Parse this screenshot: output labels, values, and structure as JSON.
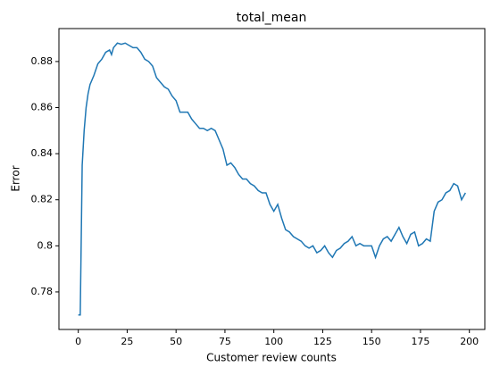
{
  "chart_data": {
    "type": "line",
    "title": "total_mean",
    "xlabel": "Customer review counts",
    "ylabel": "Error",
    "series": [
      {
        "color": "#1f77b4",
        "x": [
          0,
          1,
          2,
          3,
          4,
          5,
          6,
          8,
          10,
          12,
          14,
          16,
          17,
          18,
          20,
          22,
          24,
          26,
          28,
          30,
          32,
          34,
          36,
          38,
          40,
          42,
          44,
          46,
          48,
          50,
          52,
          54,
          56,
          58,
          60,
          62,
          64,
          66,
          68,
          70,
          72,
          74,
          76,
          78,
          80,
          82,
          84,
          86,
          88,
          90,
          92,
          94,
          96,
          98,
          100,
          102,
          104,
          106,
          108,
          110,
          112,
          114,
          116,
          118,
          120,
          122,
          124,
          126,
          128,
          130,
          132,
          134,
          136,
          138,
          140,
          142,
          144,
          146,
          148,
          150,
          152,
          154,
          156,
          158,
          160,
          162,
          164,
          166,
          168,
          170,
          172,
          174,
          176,
          178,
          180,
          182,
          184,
          186,
          188,
          190,
          192,
          194,
          196,
          198
        ],
        "values": [
          0.77,
          0.77,
          0.835,
          0.85,
          0.86,
          0.866,
          0.87,
          0.874,
          0.879,
          0.881,
          0.884,
          0.885,
          0.883,
          0.886,
          0.888,
          0.8875,
          0.888,
          0.887,
          0.886,
          0.886,
          0.884,
          0.881,
          0.88,
          0.878,
          0.873,
          0.871,
          0.869,
          0.868,
          0.865,
          0.863,
          0.858,
          0.858,
          0.858,
          0.855,
          0.853,
          0.851,
          0.851,
          0.85,
          0.851,
          0.85,
          0.846,
          0.842,
          0.835,
          0.836,
          0.834,
          0.831,
          0.829,
          0.829,
          0.827,
          0.826,
          0.824,
          0.823,
          0.823,
          0.818,
          0.815,
          0.818,
          0.812,
          0.807,
          0.806,
          0.804,
          0.803,
          0.802,
          0.8,
          0.799,
          0.8,
          0.797,
          0.798,
          0.8,
          0.797,
          0.795,
          0.798,
          0.799,
          0.801,
          0.802,
          0.804,
          0.8,
          0.801,
          0.8,
          0.8,
          0.8,
          0.795,
          0.8,
          0.803,
          0.804,
          0.802,
          0.805,
          0.808,
          0.804,
          0.801,
          0.805,
          0.806,
          0.8,
          0.801,
          0.803,
          0.802,
          0.815,
          0.819,
          0.82,
          0.823,
          0.824,
          0.827,
          0.826,
          0.82,
          0.823
        ]
      }
    ],
    "xlim": [
      -9.9,
      207.9
    ],
    "xticks": [
      0,
      25,
      50,
      75,
      100,
      125,
      150,
      175,
      200
    ],
    "ylim": [
      0.7637,
      0.8943
    ],
    "yticks": [
      0.78,
      0.8,
      0.82,
      0.84,
      0.86,
      0.88
    ]
  }
}
